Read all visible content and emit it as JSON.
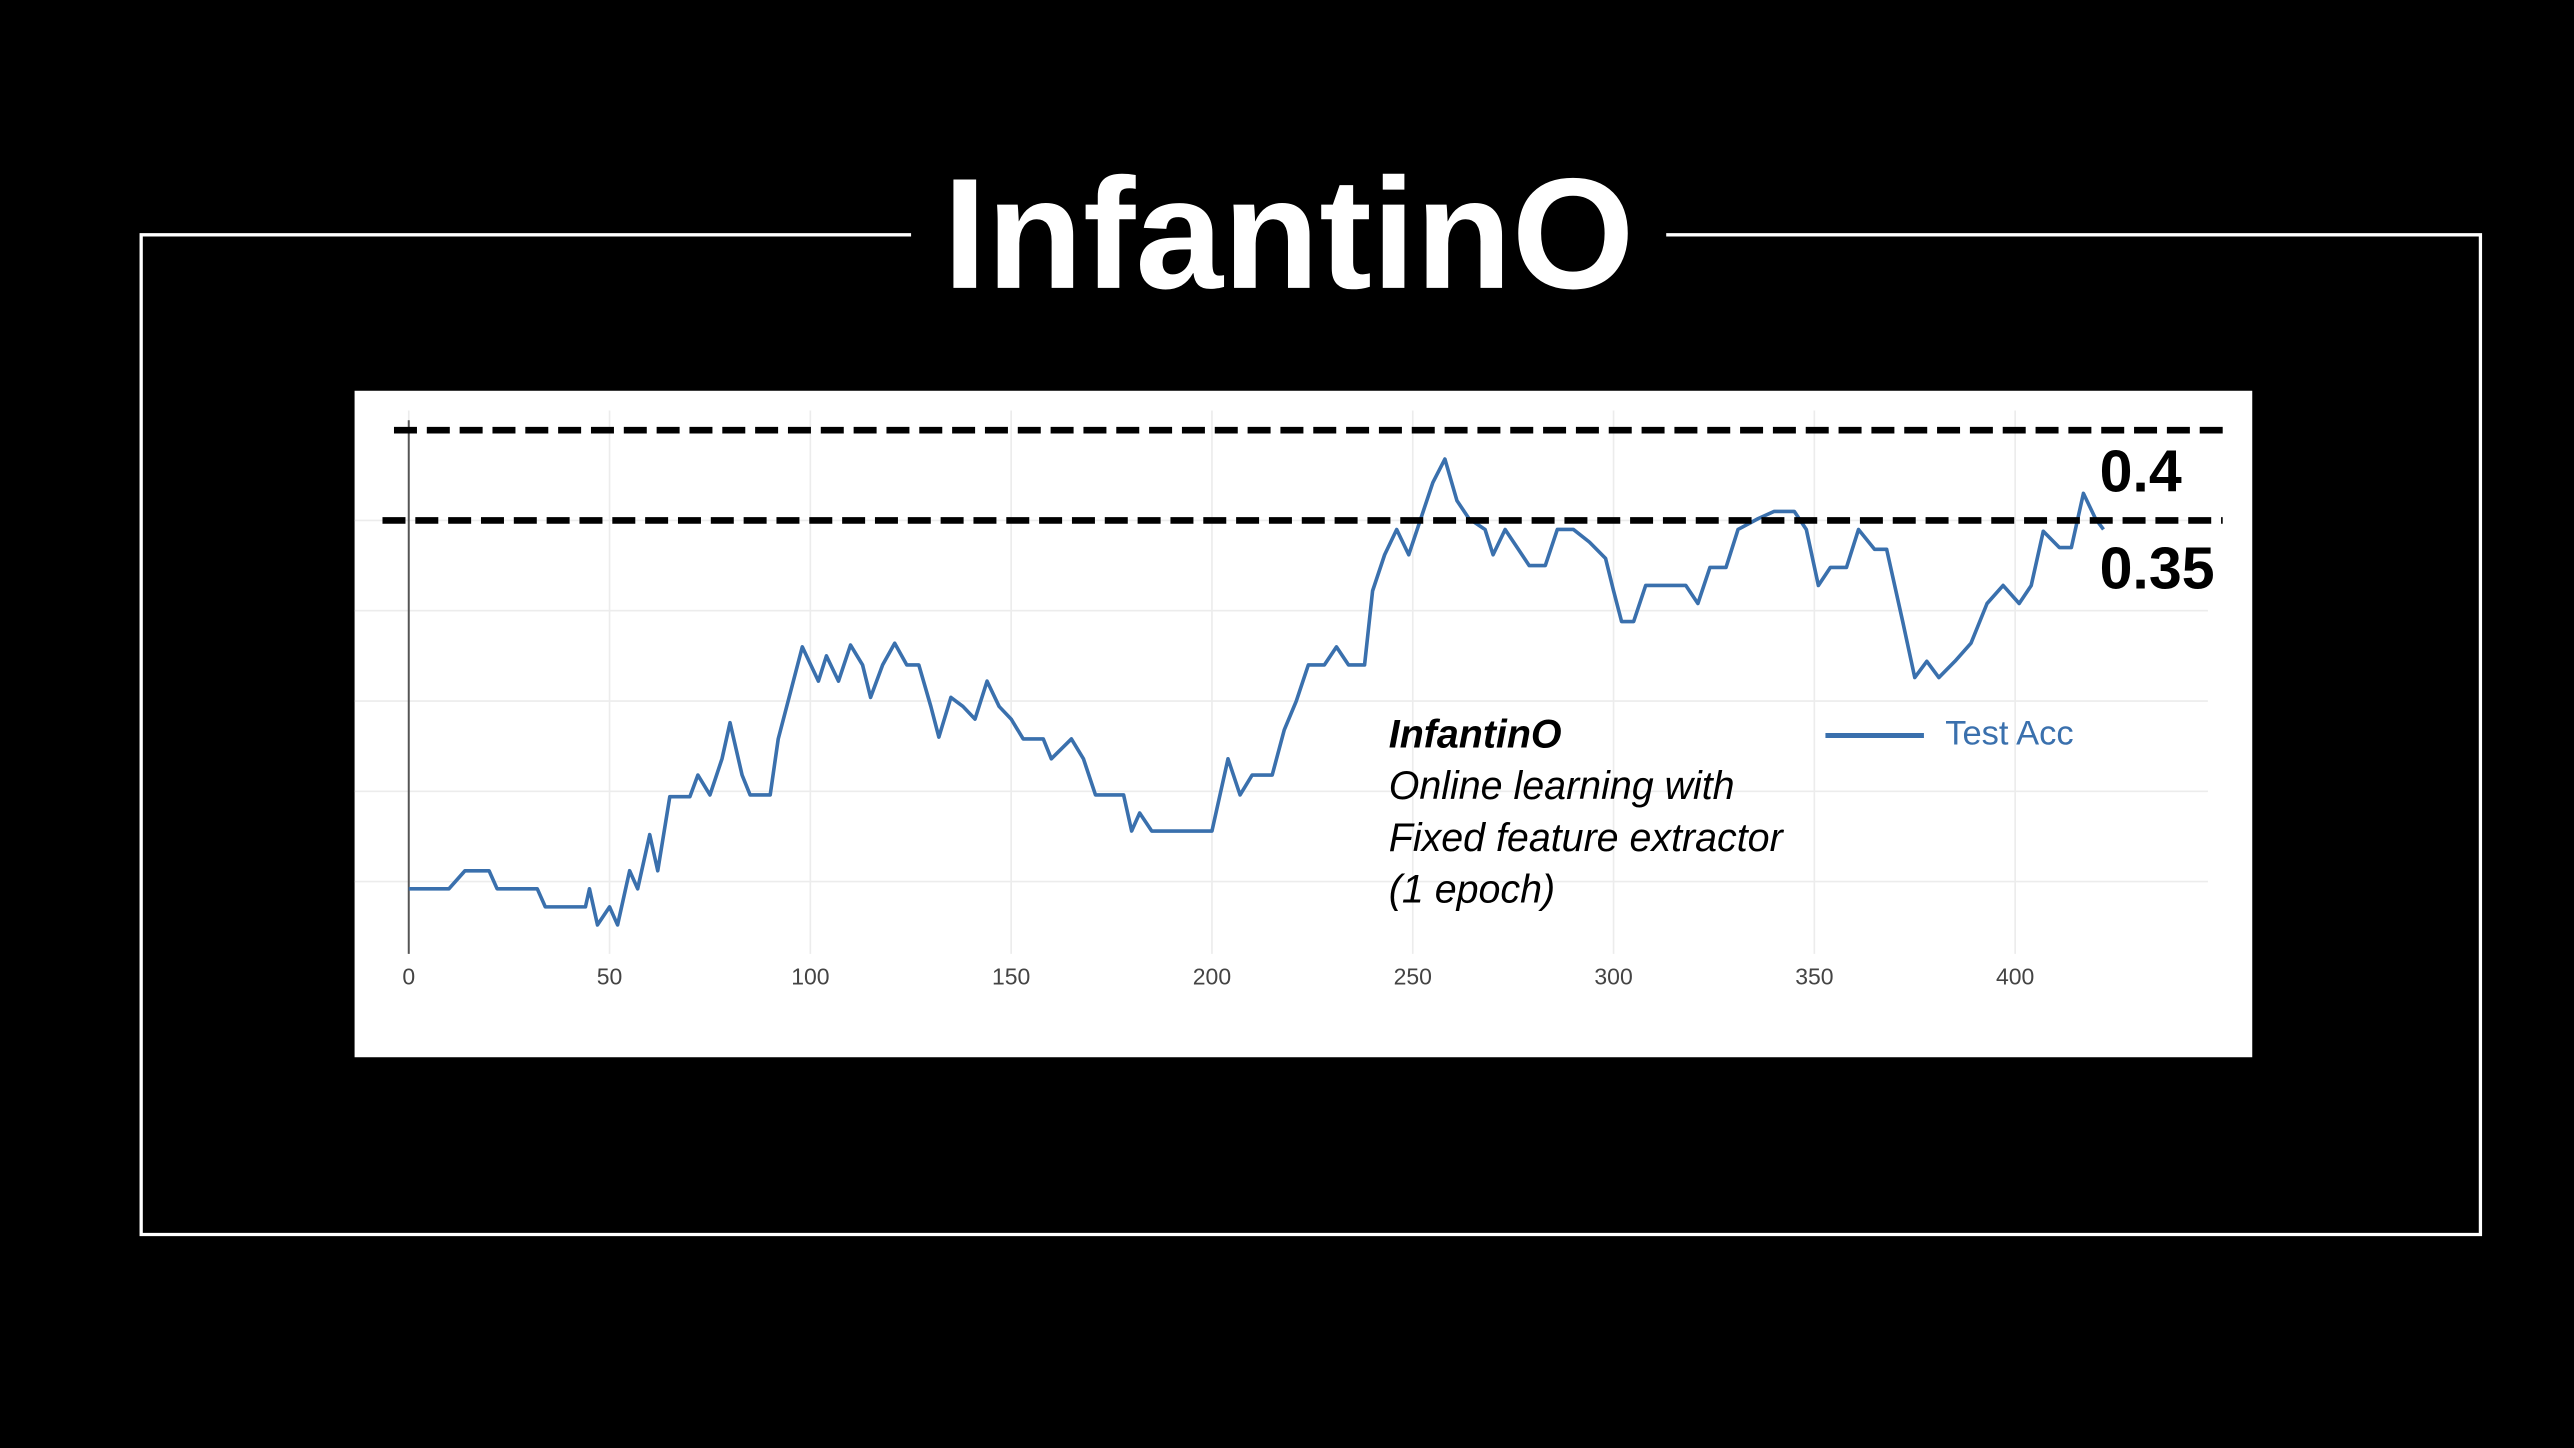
{
  "chart_data": {
    "type": "line",
    "title": "InfantinO",
    "x": [
      0,
      10,
      14,
      20,
      22,
      32,
      34,
      44,
      45,
      47,
      50,
      52,
      55,
      57,
      60,
      62,
      65,
      70,
      72,
      75,
      78,
      80,
      83,
      85,
      90,
      92,
      98,
      102,
      104,
      107,
      110,
      113,
      115,
      118,
      121,
      124,
      127,
      130,
      132,
      135,
      138,
      141,
      144,
      147,
      150,
      153,
      158,
      160,
      165,
      168,
      171,
      178,
      180,
      182,
      185,
      200,
      204,
      207,
      210,
      215,
      218,
      221,
      224,
      228,
      231,
      234,
      238,
      240,
      243,
      246,
      249,
      252,
      255,
      258,
      261,
      264,
      268,
      270,
      273,
      276,
      279,
      283,
      286,
      290,
      294,
      298,
      300,
      302,
      305,
      308,
      318,
      321,
      324,
      328,
      331,
      336,
      340,
      345,
      348,
      351,
      354,
      358,
      361,
      365,
      368,
      372,
      375,
      378,
      381,
      385,
      389,
      393,
      397,
      401,
      404,
      407,
      411,
      414,
      417,
      420,
      422
    ],
    "series": [
      {
        "name": "Test Acc",
        "color": "#3a70ad",
        "values": [
          0.146,
          0.146,
          0.156,
          0.156,
          0.146,
          0.146,
          0.136,
          0.136,
          0.146,
          0.126,
          0.136,
          0.126,
          0.156,
          0.146,
          0.176,
          0.156,
          0.197,
          0.197,
          0.209,
          0.198,
          0.218,
          0.238,
          0.209,
          0.198,
          0.198,
          0.229,
          0.28,
          0.261,
          0.275,
          0.261,
          0.281,
          0.27,
          0.252,
          0.27,
          0.282,
          0.27,
          0.27,
          0.247,
          0.23,
          0.252,
          0.247,
          0.24,
          0.261,
          0.247,
          0.24,
          0.229,
          0.229,
          0.218,
          0.229,
          0.218,
          0.198,
          0.198,
          0.178,
          0.188,
          0.178,
          0.178,
          0.218,
          0.198,
          0.209,
          0.209,
          0.234,
          0.25,
          0.27,
          0.27,
          0.28,
          0.27,
          0.27,
          0.311,
          0.331,
          0.345,
          0.331,
          0.351,
          0.371,
          0.384,
          0.361,
          0.351,
          0.345,
          0.331,
          0.345,
          0.335,
          0.325,
          0.325,
          0.345,
          0.345,
          0.338,
          0.329,
          0.311,
          0.294,
          0.294,
          0.314,
          0.314,
          0.304,
          0.324,
          0.324,
          0.345,
          0.351,
          0.355,
          0.355,
          0.345,
          0.314,
          0.324,
          0.324,
          0.345,
          0.334,
          0.334,
          0.294,
          0.263,
          0.272,
          0.263,
          0.272,
          0.282,
          0.304,
          0.314,
          0.304,
          0.314,
          0.344,
          0.335,
          0.335,
          0.365,
          0.351,
          0.345
        ]
      }
    ],
    "xlim": [
      0,
      448
    ],
    "xticks": [
      0,
      50,
      100,
      150,
      200,
      250,
      300,
      350,
      400
    ],
    "ylim": [
      0.11,
      0.405
    ],
    "yticks": [
      0.15,
      0.2,
      0.25,
      0.3,
      0.35
    ],
    "grid": true,
    "reference_lines": [
      0.4,
      0.35
    ],
    "annotations": [
      "InfantinO",
      "Online learning with",
      "Fixed feature extractor",
      "(1 epoch)"
    ]
  }
}
